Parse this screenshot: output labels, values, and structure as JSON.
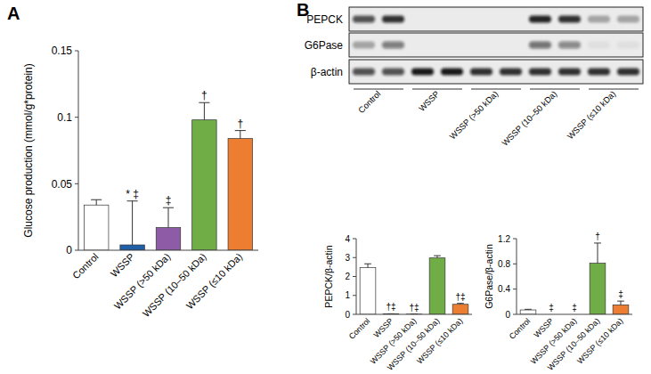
{
  "panel_labels": [
    "A",
    "B"
  ],
  "blot": {
    "rows": [
      "PEPCK",
      "G6Pase",
      "β-actin"
    ],
    "lanes": [
      "Control",
      "WSSP",
      "WSSP (>50 kDa)",
      "WSSP (10–50 kDa)",
      "WSSP (≤10 kDa)"
    ],
    "bands": [
      [
        0.7,
        0.85,
        0,
        0,
        0,
        0,
        0.9,
        0.85,
        0.3,
        0.3
      ],
      [
        0.3,
        0.5,
        0,
        0,
        0,
        0,
        0.55,
        0.45,
        0.05,
        0.05
      ],
      [
        0.7,
        0.7,
        0.95,
        0.95,
        0.85,
        0.85,
        0.85,
        0.85,
        0.85,
        0.85
      ]
    ]
  },
  "chart_data": [
    {
      "type": "bar",
      "y_label": "Glucose production (mmol/g*protein)",
      "categories": [
        "Control",
        "WSSP",
        "WSSP (>50 kDa)",
        "WSSP (10–50 kDa)",
        "WSSP (≤10 kDa)"
      ],
      "values": [
        0.034,
        0.004,
        0.017,
        0.098,
        0.084
      ],
      "errors": [
        0.004,
        0.033,
        0.015,
        0.013,
        0.006
      ],
      "colors": [
        "#ffffff",
        "#1f5fa8",
        "#8e5ba6",
        "#70ad47",
        "#ed7d31"
      ],
      "annotations": [
        null,
        "* ‡",
        "‡",
        "†",
        "†"
      ],
      "ylim": [
        0,
        0.15
      ],
      "yticks": [
        0,
        0.05,
        0.1,
        0.15
      ]
    },
    {
      "type": "bar",
      "y_label": "PEPCK/β-actin",
      "categories": [
        "Control",
        "WSSP",
        "WSSP (>50 kDa)",
        "WSSP (10–50 kDa)",
        "WSSP (≤10 kDa)"
      ],
      "values": [
        2.47,
        0.02,
        0.01,
        2.98,
        0.53
      ],
      "errors": [
        0.2,
        0.01,
        0.01,
        0.12,
        0.05
      ],
      "colors": [
        "#ffffff",
        "#1f5fa8",
        "#8e5ba6",
        "#70ad47",
        "#ed7d31"
      ],
      "annotations": [
        null,
        "†‡",
        "†‡",
        null,
        "†‡"
      ],
      "ylim": [
        0,
        4
      ],
      "yticks": [
        0,
        1,
        2,
        3,
        4
      ]
    },
    {
      "type": "bar",
      "y_label": "G6Pase/β-actin",
      "categories": [
        "Control",
        "WSSP",
        "WSSP (>50 kDa)",
        "WSSP (10–50 kDa)",
        "WSSP (≤10 kDa)"
      ],
      "values": [
        0.07,
        0,
        0,
        0.81,
        0.15
      ],
      "errors": [
        0.01,
        0,
        0,
        0.32,
        0.06
      ],
      "colors": [
        "#ffffff",
        "#1f5fa8",
        "#8e5ba6",
        "#70ad47",
        "#ed7d31"
      ],
      "annotations": [
        null,
        "‡",
        "‡",
        "†",
        "‡"
      ],
      "ylim": [
        0,
        1.2
      ],
      "yticks": [
        0,
        0.4,
        0.8,
        1.2
      ]
    }
  ]
}
